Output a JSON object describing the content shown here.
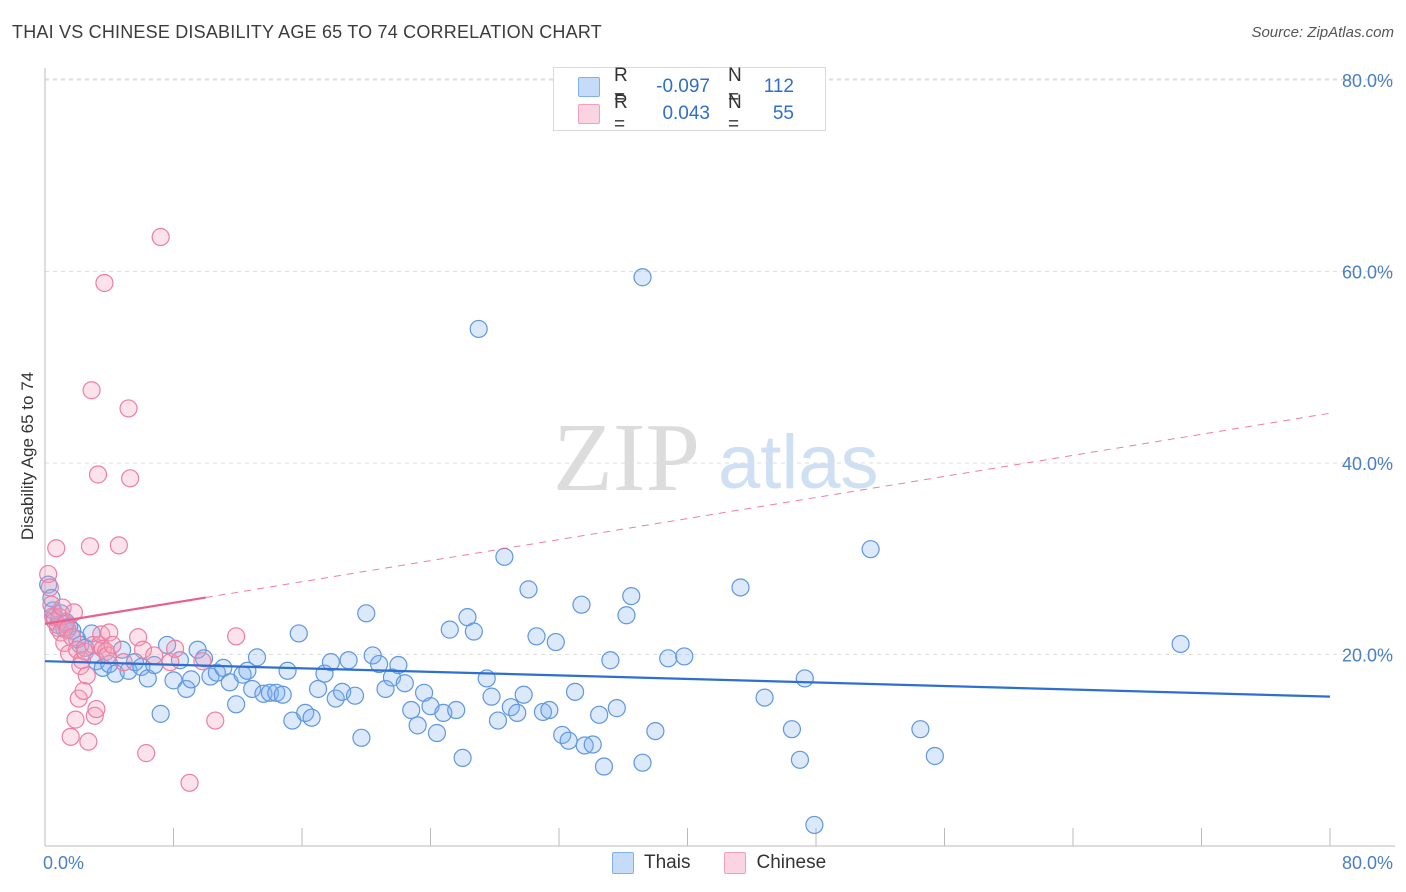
{
  "header": {
    "title": "THAI VS CHINESE DISABILITY AGE 65 TO 74 CORRELATION CHART",
    "source": "Source: ZipAtlas.com"
  },
  "watermark": {
    "zip": "ZIP",
    "atlas": "atlas"
  },
  "legend": {
    "rows": [
      {
        "r_label": "R =",
        "r_value": "-0.097",
        "n_label": "N =",
        "n_value": "112",
        "color": "#7fb0ef"
      },
      {
        "r_label": "R =",
        "r_value": "0.043",
        "n_label": "N =",
        "n_value": "55",
        "color": "#f4a0bb"
      }
    ]
  },
  "bottom_legend": {
    "thais": "Thais",
    "chinese": "Chinese"
  },
  "chart_data": {
    "type": "scatter",
    "title": "THAI VS CHINESE DISABILITY AGE 65 TO 74 CORRELATION CHART",
    "xlabel": "",
    "ylabel": "Disability Age 65 to 74",
    "xlim": [
      0,
      80
    ],
    "ylim": [
      0,
      80
    ],
    "x_tick_labels": [
      "0.0%",
      "80.0%"
    ],
    "y_ticks": [
      20,
      40,
      60,
      80
    ],
    "y_tick_labels": [
      "20.0%",
      "40.0%",
      "60.0%",
      "80.0%"
    ],
    "series": [
      {
        "name": "Thais",
        "color": "#7fb0ef",
        "line_color": "#2f6fcf",
        "trend": {
          "x0": 0,
          "y0": 19.3,
          "x1": 80,
          "y1": 15.6,
          "style": "solid"
        },
        "points": [
          [
            0.2,
            27.3
          ],
          [
            0.4,
            25.9
          ],
          [
            0.5,
            24.6
          ],
          [
            0.6,
            23.9
          ],
          [
            0.8,
            23.1
          ],
          [
            1.0,
            24.3
          ],
          [
            1.2,
            22.7
          ],
          [
            1.3,
            23.4
          ],
          [
            1.5,
            22.9
          ],
          [
            1.7,
            22.5
          ],
          [
            2.0,
            21.6
          ],
          [
            2.2,
            21.0
          ],
          [
            2.5,
            20.7
          ],
          [
            2.9,
            22.2
          ],
          [
            3.2,
            19.3
          ],
          [
            3.6,
            18.6
          ],
          [
            4.0,
            19.0
          ],
          [
            4.4,
            18.0
          ],
          [
            4.8,
            20.5
          ],
          [
            5.2,
            18.3
          ],
          [
            5.6,
            19.2
          ],
          [
            6.0,
            18.7
          ],
          [
            6.4,
            17.5
          ],
          [
            6.8,
            18.9
          ],
          [
            7.2,
            13.8
          ],
          [
            7.6,
            21.0
          ],
          [
            8.0,
            17.3
          ],
          [
            8.4,
            19.4
          ],
          [
            8.8,
            16.4
          ],
          [
            9.1,
            17.4
          ],
          [
            9.5,
            20.5
          ],
          [
            9.9,
            19.6
          ],
          [
            10.3,
            17.7
          ],
          [
            10.7,
            18.1
          ],
          [
            11.1,
            18.6
          ],
          [
            11.5,
            17.1
          ],
          [
            11.9,
            14.8
          ],
          [
            12.3,
            17.9
          ],
          [
            12.6,
            18.3
          ],
          [
            12.9,
            16.4
          ],
          [
            13.2,
            19.7
          ],
          [
            13.6,
            15.9
          ],
          [
            14.0,
            16.0
          ],
          [
            14.4,
            16.0
          ],
          [
            14.8,
            15.8
          ],
          [
            15.1,
            18.3
          ],
          [
            15.4,
            13.1
          ],
          [
            15.8,
            22.2
          ],
          [
            16.2,
            13.9
          ],
          [
            16.6,
            13.4
          ],
          [
            17.0,
            16.4
          ],
          [
            17.4,
            18.0
          ],
          [
            17.8,
            19.2
          ],
          [
            18.1,
            15.4
          ],
          [
            18.5,
            16.1
          ],
          [
            18.9,
            19.4
          ],
          [
            19.3,
            15.7
          ],
          [
            19.7,
            11.3
          ],
          [
            20.0,
            24.3
          ],
          [
            20.4,
            19.9
          ],
          [
            20.8,
            19.0
          ],
          [
            21.2,
            16.4
          ],
          [
            21.6,
            17.6
          ],
          [
            22.0,
            18.9
          ],
          [
            22.4,
            17.0
          ],
          [
            22.8,
            14.2
          ],
          [
            23.2,
            12.6
          ],
          [
            23.6,
            16.0
          ],
          [
            24.0,
            14.6
          ],
          [
            24.4,
            11.8
          ],
          [
            24.8,
            13.9
          ],
          [
            25.2,
            22.6
          ],
          [
            25.6,
            14.2
          ],
          [
            26.0,
            9.2
          ],
          [
            26.3,
            23.9
          ],
          [
            26.7,
            22.4
          ],
          [
            27.0,
            54.0
          ],
          [
            27.5,
            17.5
          ],
          [
            27.8,
            15.6
          ],
          [
            28.2,
            13.1
          ],
          [
            28.6,
            30.2
          ],
          [
            29.0,
            14.5
          ],
          [
            29.4,
            13.9
          ],
          [
            29.8,
            15.8
          ],
          [
            30.1,
            26.8
          ],
          [
            30.6,
            21.9
          ],
          [
            31.0,
            14.0
          ],
          [
            31.4,
            14.2
          ],
          [
            31.8,
            21.3
          ],
          [
            32.2,
            11.6
          ],
          [
            32.6,
            11.0
          ],
          [
            33.0,
            16.1
          ],
          [
            33.4,
            25.2
          ],
          [
            33.6,
            10.5
          ],
          [
            34.1,
            10.6
          ],
          [
            34.5,
            13.7
          ],
          [
            34.8,
            8.3
          ],
          [
            35.2,
            19.4
          ],
          [
            35.6,
            14.4
          ],
          [
            36.2,
            24.1
          ],
          [
            36.5,
            26.1
          ],
          [
            37.2,
            8.7
          ],
          [
            37.2,
            59.4
          ],
          [
            38.0,
            12.0
          ],
          [
            38.8,
            19.6
          ],
          [
            39.8,
            19.8
          ],
          [
            43.3,
            27.0
          ],
          [
            44.8,
            15.5
          ],
          [
            46.5,
            12.2
          ],
          [
            47.0,
            9.0
          ],
          [
            47.3,
            17.5
          ],
          [
            47.9,
            2.2
          ],
          [
            51.4,
            31.0
          ],
          [
            54.5,
            12.2
          ],
          [
            55.4,
            9.4
          ],
          [
            70.7,
            21.1
          ]
        ]
      },
      {
        "name": "Chinese",
        "color": "#f4a0bb",
        "line_color": "#e8608c",
        "trend": {
          "x0": 0,
          "y0": 23.2,
          "x1": 80,
          "y1": 45.2,
          "style": "dashed",
          "solid_until": 10
        },
        "points": [
          [
            0.2,
            28.4
          ],
          [
            0.3,
            27.0
          ],
          [
            0.4,
            25.2
          ],
          [
            0.5,
            24.0
          ],
          [
            0.6,
            23.5
          ],
          [
            0.7,
            31.1
          ],
          [
            0.8,
            22.8
          ],
          [
            0.9,
            23.9
          ],
          [
            1.0,
            22.3
          ],
          [
            1.1,
            24.9
          ],
          [
            1.2,
            21.2
          ],
          [
            1.3,
            23.2
          ],
          [
            1.4,
            22.6
          ],
          [
            1.5,
            20.1
          ],
          [
            1.6,
            11.4
          ],
          [
            1.7,
            21.8
          ],
          [
            1.8,
            24.4
          ],
          [
            1.9,
            13.2
          ],
          [
            2.0,
            20.5
          ],
          [
            2.1,
            15.4
          ],
          [
            2.2,
            18.8
          ],
          [
            2.3,
            19.4
          ],
          [
            2.4,
            16.2
          ],
          [
            2.5,
            20.3
          ],
          [
            2.6,
            17.8
          ],
          [
            2.7,
            10.9
          ],
          [
            2.8,
            31.3
          ],
          [
            2.9,
            47.6
          ],
          [
            3.0,
            21.0
          ],
          [
            3.1,
            13.6
          ],
          [
            3.2,
            14.3
          ],
          [
            3.3,
            38.8
          ],
          [
            3.4,
            21.0
          ],
          [
            3.5,
            22.1
          ],
          [
            3.6,
            20.6
          ],
          [
            3.7,
            58.8
          ],
          [
            3.8,
            20.3
          ],
          [
            3.9,
            19.9
          ],
          [
            4.0,
            22.3
          ],
          [
            4.2,
            21.0
          ],
          [
            4.6,
            31.4
          ],
          [
            4.9,
            19.2
          ],
          [
            5.2,
            45.7
          ],
          [
            5.3,
            38.4
          ],
          [
            5.8,
            21.8
          ],
          [
            6.1,
            20.5
          ],
          [
            6.3,
            9.7
          ],
          [
            6.8,
            19.9
          ],
          [
            7.2,
            63.6
          ],
          [
            7.8,
            19.2
          ],
          [
            8.1,
            20.6
          ],
          [
            9.0,
            6.6
          ],
          [
            9.8,
            19.3
          ],
          [
            10.6,
            13.1
          ],
          [
            11.9,
            21.9
          ]
        ]
      }
    ]
  }
}
